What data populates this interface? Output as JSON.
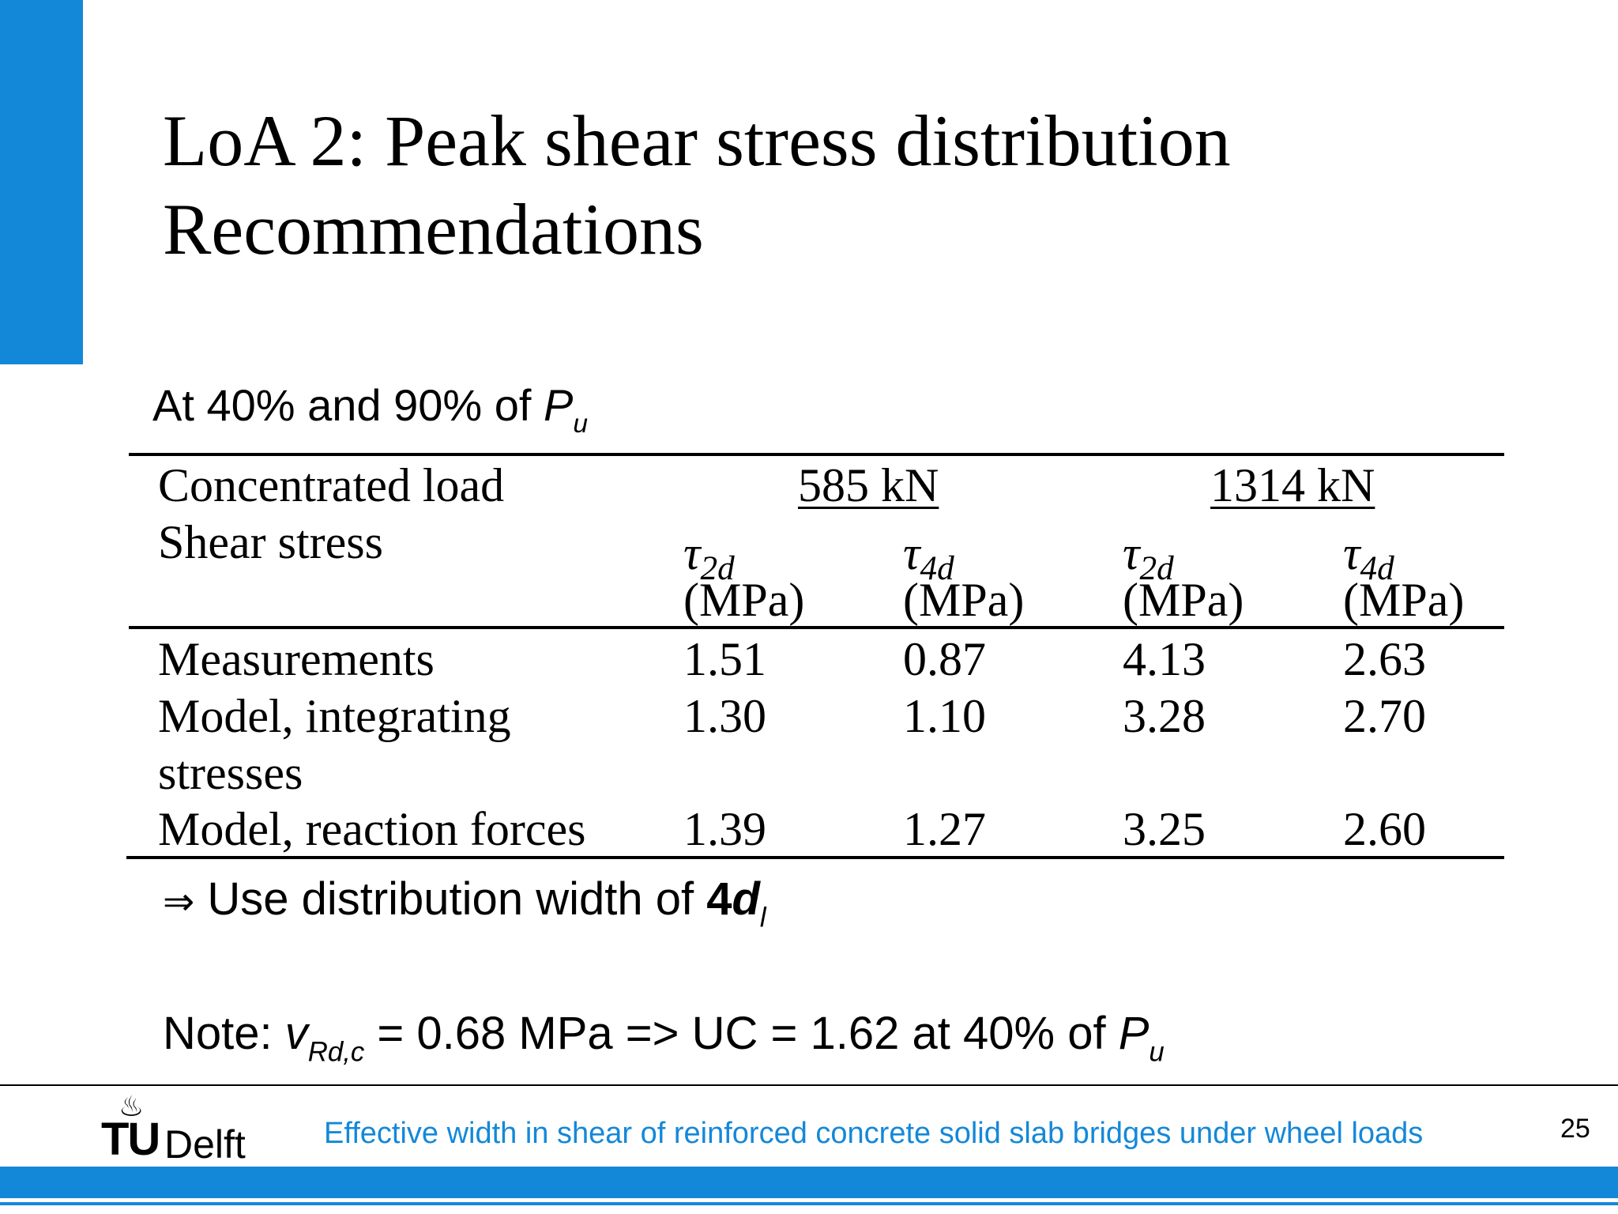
{
  "slide": {
    "title_line1": "LoA 2: Peak shear stress distribution",
    "title_line2": "Recommendations",
    "subtitle_prefix": "At 40% and 90% of ",
    "subtitle_var": "P",
    "subtitle_sub": "u"
  },
  "table": {
    "row_header_load": "Concentrated load",
    "row_header_stress": "Shear stress",
    "load_groups": [
      "585 kN",
      "1314 kN"
    ],
    "stress_symbol": "τ",
    "stress_subscripts": [
      "2d",
      "4d",
      "2d",
      "4d"
    ],
    "unit": "(MPa)",
    "rows": [
      {
        "label": "Measurements",
        "values": [
          "1.51",
          "0.87",
          "4.13",
          "2.63"
        ]
      },
      {
        "label_line1": "Model, integrating",
        "label_line2": "stresses",
        "values": [
          "1.30",
          "1.10",
          "3.28",
          "2.70"
        ]
      },
      {
        "label": "Model, reaction forces",
        "values": [
          "1.39",
          "1.27",
          "3.25",
          "2.60"
        ]
      }
    ]
  },
  "conclusion": {
    "arrow": "⇒",
    "text": " Use distribution width of ",
    "bold_num": "4",
    "bold_var": "d",
    "sub": "l"
  },
  "note": {
    "prefix": "Note: ",
    "var": "v",
    "sub": "Rd,c",
    "middle": " = 0.68 MPa => UC = 1.62 at 40% of ",
    "var2": "P",
    "sub2": "u"
  },
  "footer": {
    "logo_tu": "TU",
    "logo_delft": "Delft",
    "text": "Effective width in shear of reinforced concrete solid slab bridges under wheel loads",
    "page_number": "25"
  },
  "colors": {
    "accent": "#1488d8"
  }
}
